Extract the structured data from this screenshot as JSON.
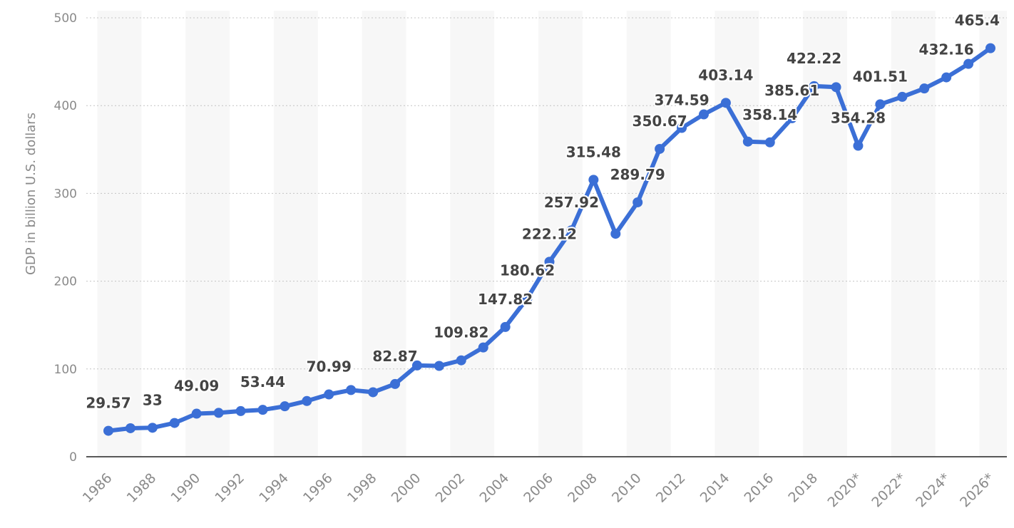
{
  "chart_data": {
    "type": "line",
    "ylabel": "GDP in billion U.S. dollars",
    "ylim": [
      0,
      500
    ],
    "yticks": [
      "0",
      "100",
      "200",
      "300",
      "400",
      "500"
    ],
    "ytick_values": [
      0,
      100,
      200,
      300,
      400,
      500
    ],
    "grid": true,
    "line_color": "#3b6fd6",
    "band_color": "#f7f7f7",
    "x": [
      "1986",
      "1987",
      "1988",
      "1989",
      "1990",
      "1991",
      "1992",
      "1993",
      "1994",
      "1995",
      "1996",
      "1997",
      "1998",
      "1999",
      "2000",
      "2001",
      "2002",
      "2003",
      "2004",
      "2005",
      "2006",
      "2007",
      "2008",
      "2009",
      "2010",
      "2011",
      "2012",
      "2013",
      "2014",
      "2015",
      "2016",
      "2017",
      "2018",
      "2019",
      "2020*",
      "2021*",
      "2022*",
      "2023*",
      "2024*",
      "2025*",
      "2026*"
    ],
    "xtick_labels": [
      "1986",
      "1988",
      "1990",
      "1992",
      "1994",
      "1996",
      "1998",
      "2000",
      "2002",
      "2004",
      "2006",
      "2008",
      "2010",
      "2012",
      "2014",
      "2016",
      "2018",
      "2020*",
      "2022*",
      "2024*",
      "2026*"
    ],
    "series": [
      {
        "values": [
          29.57,
          32.5,
          33,
          38.5,
          49.09,
          50,
          52,
          53.44,
          57.5,
          63.5,
          70.99,
          76,
          73.5,
          82.87,
          104,
          103.5,
          109.82,
          124.5,
          147.82,
          180.62,
          222.12,
          257.92,
          315.48,
          254,
          289.79,
          350.67,
          374.59,
          390,
          403.14,
          359,
          358.14,
          385.61,
          422.22,
          421,
          354.28,
          401.51,
          410,
          419.5,
          432.16,
          447.5,
          465.4
        ],
        "labels": [
          "29.57",
          "",
          "33",
          "",
          "49.09",
          "",
          "",
          "53.44",
          "",
          "",
          "70.99",
          "",
          "",
          "82.87",
          "",
          "",
          "109.82",
          "",
          "147.82",
          "180.62",
          "222.12",
          "257.92",
          "315.48",
          "",
          "289.79",
          "350.67",
          "374.59",
          "",
          "403.14",
          "",
          "358.14",
          "385.61",
          "422.22",
          "",
          "354.28",
          "401.51",
          "",
          "",
          "432.16",
          "",
          "465.4"
        ]
      }
    ]
  }
}
